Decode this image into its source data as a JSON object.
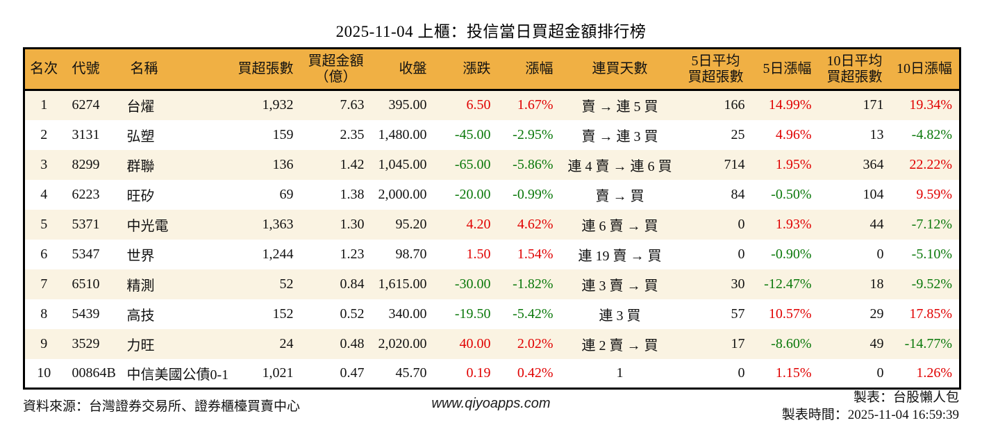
{
  "title": "2025-11-04 上櫃：投信當日買超金額排行榜",
  "colors": {
    "header_bg": "#F0B044",
    "row_alt_bg": "#FAF3E2",
    "row_bg": "#FFFFFF",
    "up_red": "#E00000",
    "down_green": "#0A780A",
    "border": "#000000"
  },
  "table": {
    "columns": [
      {
        "key": "rank",
        "label": "名次",
        "align": "center"
      },
      {
        "key": "code",
        "label": "代號",
        "align": "left"
      },
      {
        "key": "name",
        "label": "名稱",
        "align": "left"
      },
      {
        "key": "vol",
        "label": "買超張數",
        "align": "right"
      },
      {
        "key": "amount",
        "label": "買超金額\n（億）",
        "align": "right"
      },
      {
        "key": "close",
        "label": "收盤",
        "align": "right"
      },
      {
        "key": "chg",
        "label": "漲跌",
        "align": "right"
      },
      {
        "key": "chgpct",
        "label": "漲幅",
        "align": "right"
      },
      {
        "key": "streak",
        "label": "連買天數",
        "align": "center"
      },
      {
        "key": "avg5",
        "label": "5日平均\n買超張數",
        "align": "right"
      },
      {
        "key": "pct5",
        "label": "5日漲幅",
        "align": "right"
      },
      {
        "key": "avg10",
        "label": "10日平均\n買超張數",
        "align": "right"
      },
      {
        "key": "pct10",
        "label": "10日漲幅",
        "align": "right"
      }
    ],
    "rows": [
      {
        "cells": [
          "1",
          "6274",
          "台燿",
          "1,932",
          "7.63",
          "395.00",
          "6.50",
          "1.67%",
          "賣 → 連 5 買",
          "166",
          "14.99%",
          "171",
          "19.34%"
        ],
        "dirs": {
          "6": "up",
          "7": "up",
          "10": "up",
          "12": "up"
        }
      },
      {
        "cells": [
          "2",
          "3131",
          "弘塑",
          "159",
          "2.35",
          "1,480.00",
          "-45.00",
          "-2.95%",
          "賣 → 連 3 買",
          "25",
          "4.96%",
          "13",
          "-4.82%"
        ],
        "dirs": {
          "6": "down",
          "7": "down",
          "10": "up",
          "12": "down"
        }
      },
      {
        "cells": [
          "3",
          "8299",
          "群聯",
          "136",
          "1.42",
          "1,045.00",
          "-65.00",
          "-5.86%",
          "連 4 賣 → 連 6 買",
          "714",
          "1.95%",
          "364",
          "22.22%"
        ],
        "dirs": {
          "6": "down",
          "7": "down",
          "10": "up",
          "12": "up"
        }
      },
      {
        "cells": [
          "4",
          "6223",
          "旺矽",
          "69",
          "1.38",
          "2,000.00",
          "-20.00",
          "-0.99%",
          "賣 → 買",
          "84",
          "-0.50%",
          "104",
          "9.59%"
        ],
        "dirs": {
          "6": "down",
          "7": "down",
          "10": "down",
          "12": "up"
        }
      },
      {
        "cells": [
          "5",
          "5371",
          "中光電",
          "1,363",
          "1.30",
          "95.20",
          "4.20",
          "4.62%",
          "連 6 賣 → 買",
          "0",
          "1.93%",
          "44",
          "-7.12%"
        ],
        "dirs": {
          "6": "up",
          "7": "up",
          "10": "up",
          "12": "down"
        }
      },
      {
        "cells": [
          "6",
          "5347",
          "世界",
          "1,244",
          "1.23",
          "98.70",
          "1.50",
          "1.54%",
          "連 19 賣 → 買",
          "0",
          "-0.90%",
          "0",
          "-5.10%"
        ],
        "dirs": {
          "6": "up",
          "7": "up",
          "10": "down",
          "12": "down"
        }
      },
      {
        "cells": [
          "7",
          "6510",
          "精測",
          "52",
          "0.84",
          "1,615.00",
          "-30.00",
          "-1.82%",
          "連 3 賣 → 買",
          "30",
          "-12.47%",
          "18",
          "-9.52%"
        ],
        "dirs": {
          "6": "down",
          "7": "down",
          "10": "down",
          "12": "down"
        }
      },
      {
        "cells": [
          "8",
          "5439",
          "高技",
          "152",
          "0.52",
          "340.00",
          "-19.50",
          "-5.42%",
          "連 3 買",
          "57",
          "10.57%",
          "29",
          "17.85%"
        ],
        "dirs": {
          "6": "down",
          "7": "down",
          "10": "up",
          "12": "up"
        }
      },
      {
        "cells": [
          "9",
          "3529",
          "力旺",
          "24",
          "0.48",
          "2,020.00",
          "40.00",
          "2.02%",
          "連 2 賣 → 買",
          "17",
          "-8.60%",
          "49",
          "-14.77%"
        ],
        "dirs": {
          "6": "up",
          "7": "up",
          "10": "down",
          "12": "down"
        }
      },
      {
        "cells": [
          "10",
          "00864B",
          "中信美國公債0-1",
          "1,021",
          "0.47",
          "45.70",
          "0.19",
          "0.42%",
          "1",
          "0",
          "1.15%",
          "0",
          "1.26%"
        ],
        "dirs": {
          "6": "up",
          "7": "up",
          "10": "up",
          "12": "up"
        }
      }
    ]
  },
  "footer": {
    "source": "資料來源：台灣證券交易所、證券櫃檯買賣中心",
    "website": "www.qiyoapps.com",
    "made_by": "製表：台股懶人包",
    "made_time": "製表時間：2025-11-04 16:59:39"
  }
}
